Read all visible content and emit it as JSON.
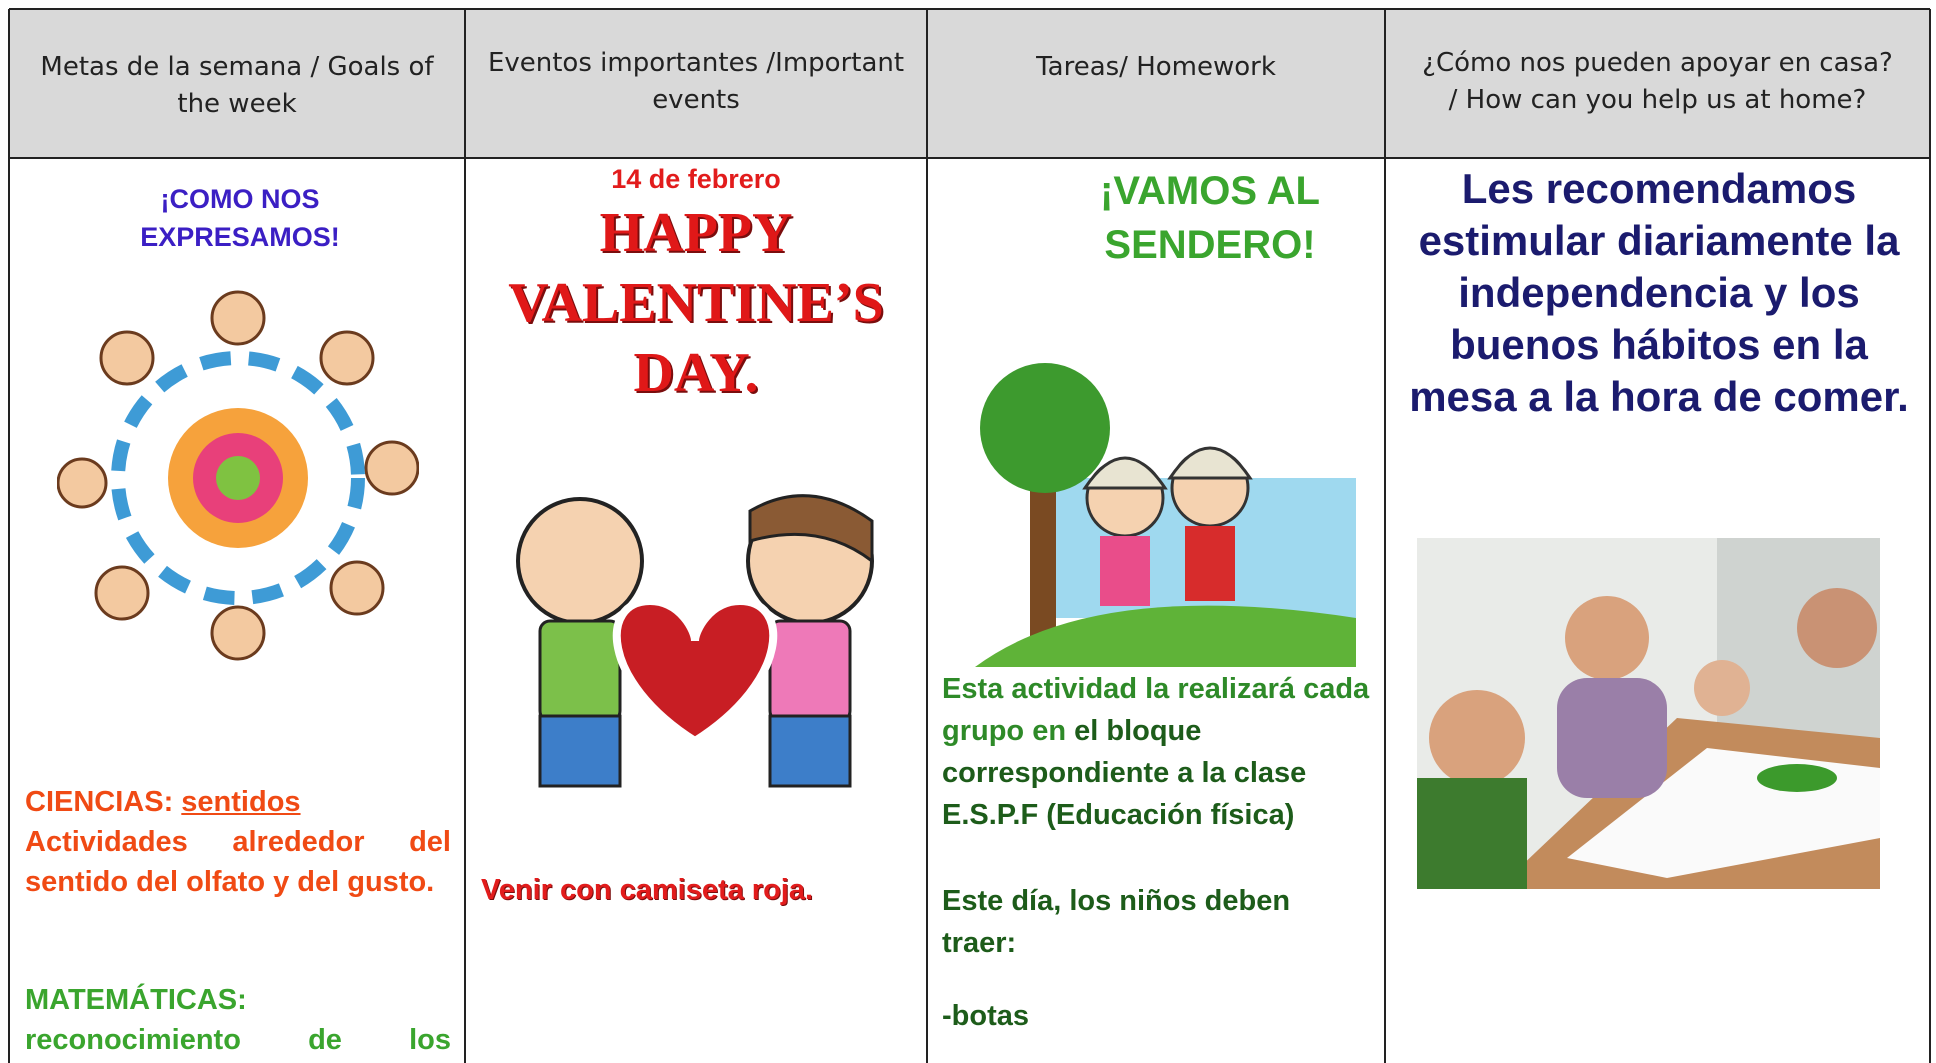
{
  "table": {
    "headers": [
      "Metas de la semana / Goals of the week",
      "Eventos importantes /Important events",
      "Tareas/ Homework",
      "¿Cómo nos pueden apoyar en casa? / How can you help us at home?"
    ],
    "goals": {
      "title": "¡COMO NOS EXPRESAMOS!",
      "science": {
        "label": "CIENCIAS:",
        "topic": "sentidos",
        "text": "Actividades alrededor del sentido del olfato y del gusto."
      },
      "math": {
        "label": "MATEMÁTICAS:",
        "text": "reconocimiento de los"
      }
    },
    "events": {
      "date": "14 de febrero",
      "title": "HAPPY VALENTINE’S DAY.",
      "note": "Venir con camiseta roja."
    },
    "homework": {
      "title": "¡VAMOS AL SENDERO!",
      "paragraph": [
        "Esta actividad la realizará cada grupo en",
        "el bloque correspondiente a la clase E.S.P.F (Educación física)"
      ],
      "bring": "Este día, los niños deben traer:",
      "items": [
        "-botas"
      ]
    },
    "help": {
      "text": "Les recomendamos estimular diariamente la independencia y los buenos hábitos en la mesa a la hora de comer."
    }
  }
}
